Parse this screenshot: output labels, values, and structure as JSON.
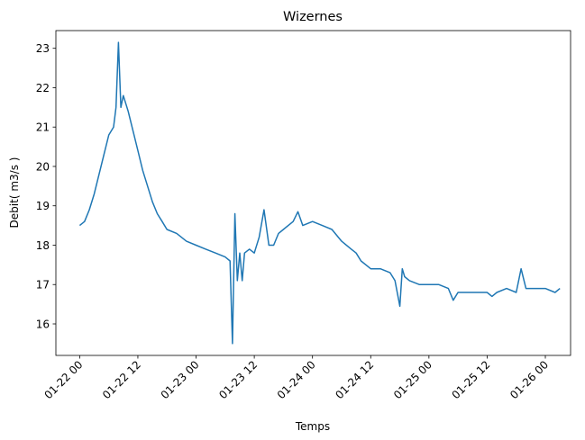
{
  "chart_data": {
    "type": "line",
    "title": "Wizernes",
    "xlabel": "Temps",
    "ylabel": "Debit( m3/s )",
    "x_tick_labels": [
      "01-22 00",
      "01-22 12",
      "01-23 00",
      "01-23 12",
      "01-24 00",
      "01-24 12",
      "01-25 00",
      "01-25 12",
      "01-26 00"
    ],
    "x_tick_hours": [
      0,
      12,
      24,
      36,
      48,
      60,
      72,
      84,
      96
    ],
    "x_unit": "hours after 01-22 00",
    "y_ticks": [
      16,
      17,
      18,
      19,
      20,
      21,
      22,
      23
    ],
    "xlim": [
      -4.9,
      101.2
    ],
    "ylim": [
      15.2,
      23.45
    ],
    "grid": false,
    "line_color": "#1f77b4",
    "series": [
      {
        "values_hours": [
          0,
          1,
          2,
          3,
          4,
          5,
          6,
          7,
          7.5,
          8,
          8.5,
          9,
          10,
          11,
          12,
          13,
          14,
          15,
          16,
          17,
          18,
          20,
          22,
          24,
          26,
          28,
          30,
          31,
          31.5,
          32,
          32.5,
          33,
          33.5,
          34,
          35,
          36,
          37,
          38,
          39,
          40,
          41,
          42,
          44,
          45,
          46,
          48,
          50,
          52,
          54,
          56,
          57,
          58,
          60,
          62,
          64,
          65,
          66,
          66.5,
          67,
          68,
          70,
          72,
          74,
          76,
          77,
          78,
          79,
          80,
          82,
          84,
          85,
          86,
          88,
          90,
          91,
          92,
          94,
          96,
          98,
          99
        ],
        "values": [
          18.5,
          18.6,
          18.9,
          19.3,
          19.8,
          20.3,
          20.8,
          21.0,
          21.5,
          23.15,
          21.5,
          21.8,
          21.4,
          20.9,
          20.4,
          19.9,
          19.5,
          19.1,
          18.8,
          18.6,
          18.4,
          18.3,
          18.1,
          18.0,
          17.9,
          17.8,
          17.7,
          17.6,
          15.5,
          18.8,
          17.1,
          17.8,
          17.1,
          17.8,
          17.9,
          17.8,
          18.2,
          18.9,
          18.0,
          18.0,
          18.3,
          18.4,
          18.6,
          18.85,
          18.5,
          18.6,
          18.5,
          18.4,
          18.1,
          17.9,
          17.8,
          17.6,
          17.4,
          17.4,
          17.3,
          17.1,
          16.45,
          17.4,
          17.2,
          17.1,
          17.0,
          17.0,
          17.0,
          16.9,
          16.6,
          16.8,
          16.8,
          16.8,
          16.8,
          16.8,
          16.7,
          16.8,
          16.9,
          16.8,
          17.4,
          16.9,
          16.9,
          16.9,
          16.8,
          16.9
        ]
      }
    ]
  }
}
